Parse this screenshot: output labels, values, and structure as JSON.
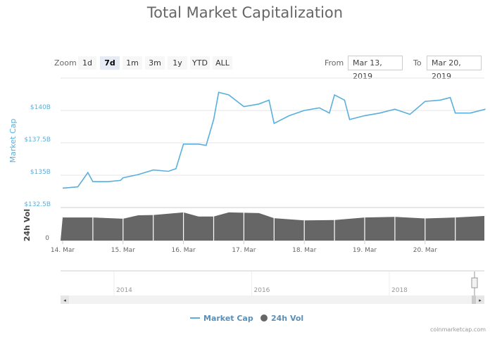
{
  "title": "Total Market Capitalization",
  "range_selector": {
    "zoom_label": "Zoom",
    "buttons": [
      "1d",
      "7d",
      "1m",
      "3m",
      "1y",
      "YTD",
      "ALL"
    ],
    "selected": "7d",
    "from_label": "From",
    "from_value": "Mar 13, 2019",
    "to_label": "To",
    "to_value": "Mar 20, 2019"
  },
  "credit": "coinmarketcap.com",
  "colors": {
    "market_cap": "#5aafdc",
    "volume": "#666666",
    "grid": "#e6e6e6"
  },
  "chart_data": [
    {
      "type": "line",
      "ylabel": "Market Cap",
      "yticks": [
        "$132.5B",
        "$135B",
        "$137.5B",
        "$140B"
      ],
      "ylim": [
        132.5,
        142.5
      ],
      "xticks": [
        "14. Mar",
        "15. Mar",
        "16. Mar",
        "17. Mar",
        "18. Mar",
        "19. Mar",
        "20. Mar"
      ],
      "xlim": [
        "2019-03-13 23:30",
        "2019-03-21 00:00"
      ],
      "grid": true,
      "series": [
        {
          "name": "Market Cap",
          "x": [
            "2019-03-14 00:00",
            "2019-03-14 06:00",
            "2019-03-14 10:00",
            "2019-03-14 12:00",
            "2019-03-14 18:00",
            "2019-03-14 23:00",
            "2019-03-15 00:00",
            "2019-03-15 06:00",
            "2019-03-15 12:00",
            "2019-03-15 18:00",
            "2019-03-15 21:00",
            "2019-03-16 00:00",
            "2019-03-16 06:00",
            "2019-03-16 09:00",
            "2019-03-16 12:00",
            "2019-03-16 14:00",
            "2019-03-16 18:00",
            "2019-03-17 00:00",
            "2019-03-17 06:00",
            "2019-03-17 10:00",
            "2019-03-17 12:00",
            "2019-03-17 18:00",
            "2019-03-18 00:00",
            "2019-03-18 06:00",
            "2019-03-18 10:00",
            "2019-03-18 12:00",
            "2019-03-18 16:00",
            "2019-03-18 18:00",
            "2019-03-19 00:00",
            "2019-03-19 06:00",
            "2019-03-19 12:00",
            "2019-03-19 18:00",
            "2019-03-20 00:00",
            "2019-03-20 06:00",
            "2019-03-20 10:00",
            "2019-03-20 12:00",
            "2019-03-20 18:00",
            "2019-03-21 00:00"
          ],
          "values": [
            134.0,
            134.1,
            135.2,
            134.5,
            134.5,
            134.6,
            134.8,
            135.05,
            135.4,
            135.3,
            135.5,
            137.4,
            137.4,
            137.3,
            139.3,
            141.4,
            141.2,
            140.3,
            140.5,
            140.8,
            139.0,
            139.6,
            140.0,
            140.2,
            139.8,
            141.2,
            140.8,
            139.3,
            139.6,
            139.8,
            140.1,
            139.7,
            140.7,
            140.8,
            141.0,
            139.8,
            139.8,
            140.1
          ]
        }
      ]
    },
    {
      "type": "area",
      "ylabel": "24h Vol",
      "yticks": [
        "0"
      ],
      "series": [
        {
          "name": "24h Vol",
          "x": [
            "2019-03-14 00:00",
            "2019-03-14 12:00",
            "2019-03-15 00:00",
            "2019-03-15 06:00",
            "2019-03-15 12:00",
            "2019-03-16 00:00",
            "2019-03-16 06:00",
            "2019-03-16 12:00",
            "2019-03-16 18:00",
            "2019-03-17 06:00",
            "2019-03-17 12:00",
            "2019-03-18 00:00",
            "2019-03-18 12:00",
            "2019-03-19 00:00",
            "2019-03-19 12:00",
            "2019-03-20 00:00",
            "2019-03-20 12:00",
            "2019-03-21 00:00"
          ],
          "values_relative": [
            0.73,
            0.73,
            0.69,
            0.8,
            0.81,
            0.89,
            0.76,
            0.76,
            0.89,
            0.87,
            0.71,
            0.64,
            0.65,
            0.73,
            0.75,
            0.7,
            0.73,
            0.78
          ]
        }
      ]
    }
  ],
  "navigator": {
    "labels": [
      "2014",
      "2016",
      "2018"
    ]
  },
  "legend": {
    "items": [
      "Market Cap",
      "24h Vol"
    ]
  }
}
